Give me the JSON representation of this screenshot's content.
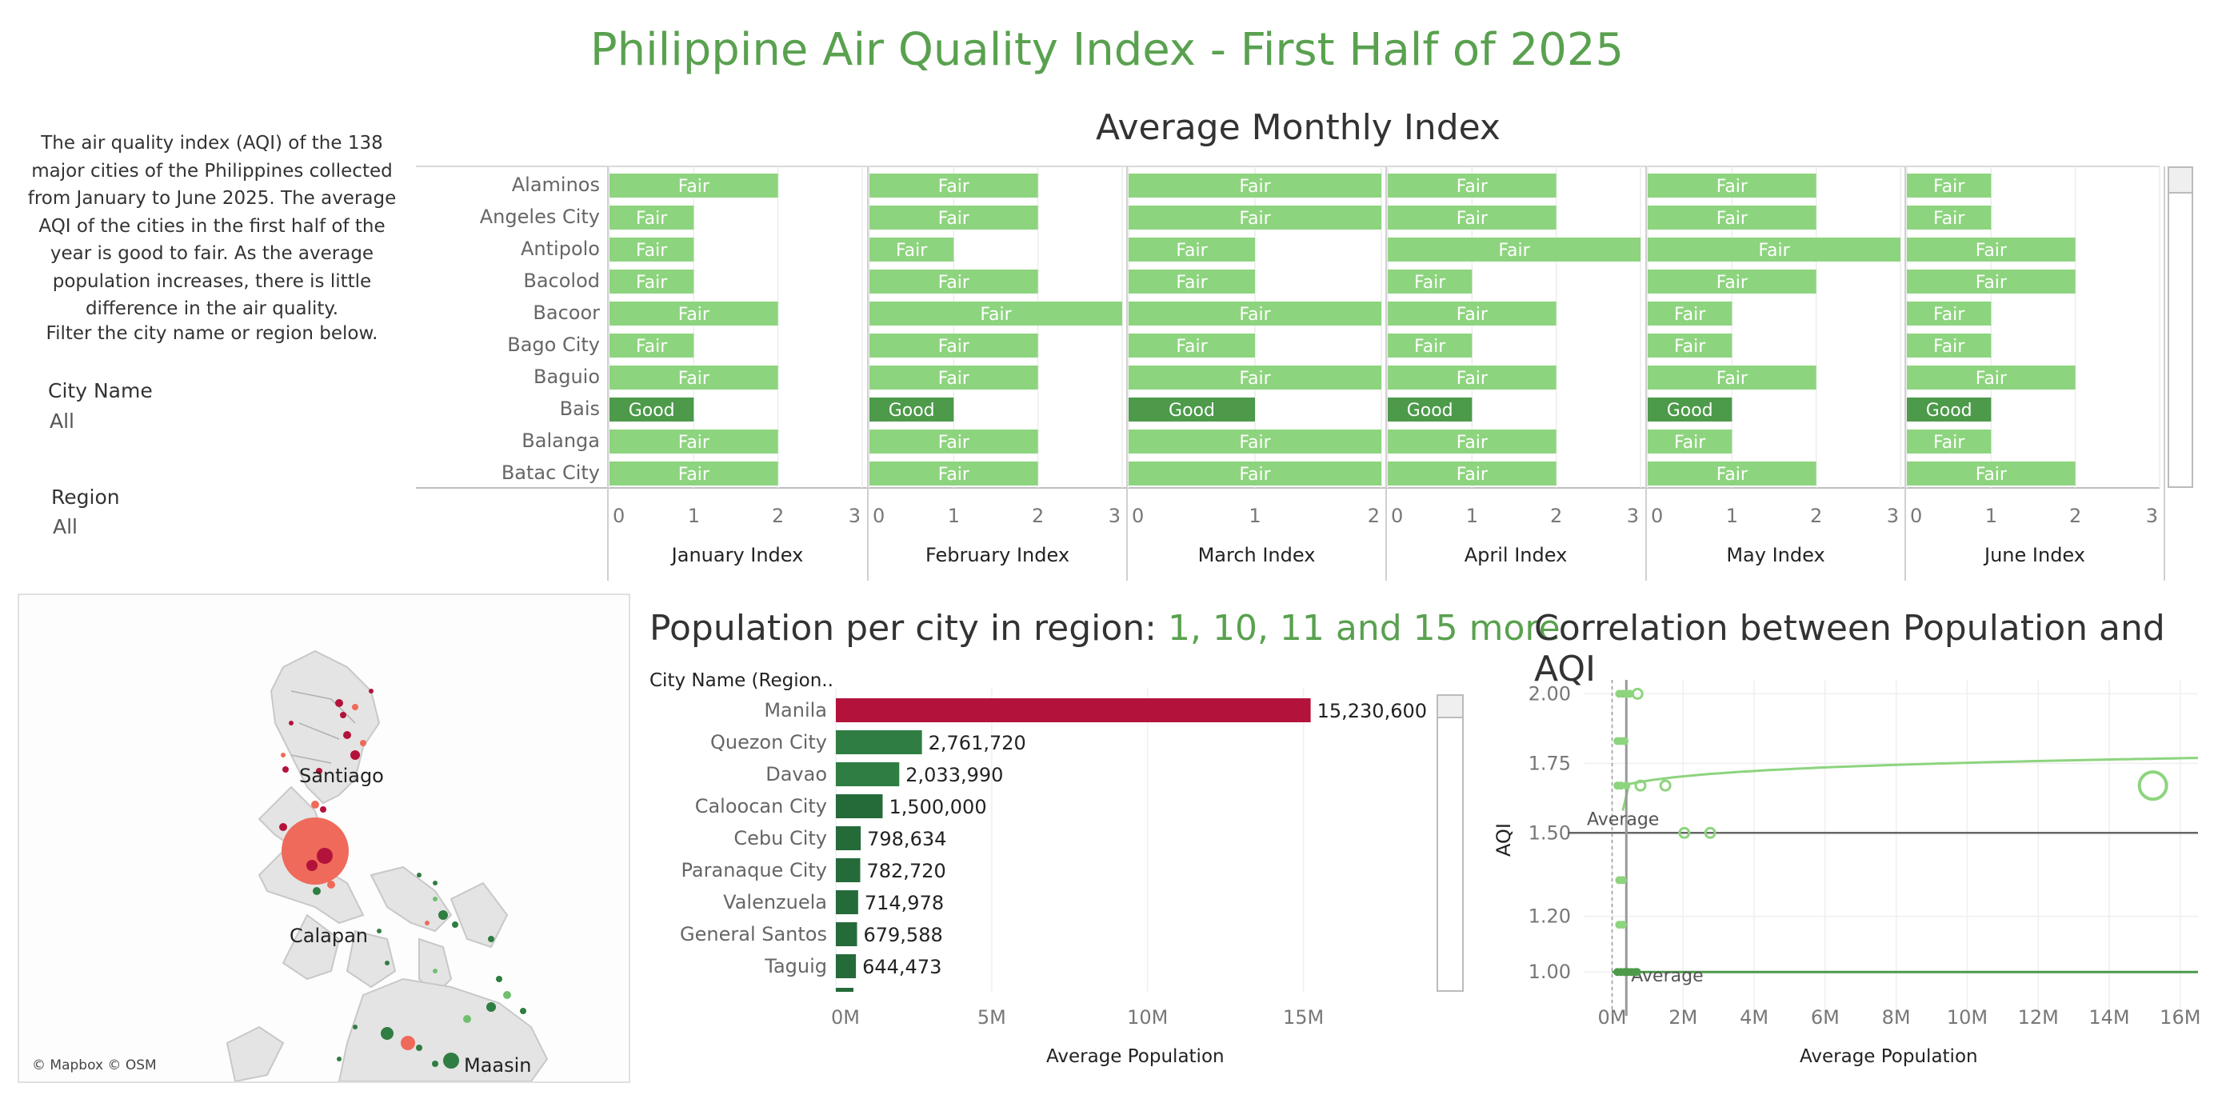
{
  "title": "Philippine Air Quality Index - First Half of 2025",
  "description": "The air quality index (AQI) of the 138 major cities of the Philippines collected from January to June 2025. The average AQI of the cities in the first half of the year is good to fair. As the average population increases, there is little difference in the air quality.",
  "filter_hint": "Filter the city name or region below.",
  "filters": {
    "city": {
      "label": "City Name",
      "value": "All"
    },
    "region": {
      "label": "Region",
      "value": "All"
    }
  },
  "map": {
    "labels": [
      "Santiago",
      "Calapan",
      "Maasin"
    ],
    "attribution": "© Mapbox © OSM",
    "colors": {
      "high": "#b3133b",
      "low": "#2f7d42",
      "mid": "#ef6a5a"
    }
  },
  "colors": {
    "fair": "#8dd47e",
    "good": "#4c9a4a",
    "manila": "#b3133b",
    "population": "#2f7d42",
    "accent": "#59a14f"
  },
  "chart_data": [
    {
      "type": "bar",
      "title": "Average Monthly Index",
      "categories": [
        "Alaminos",
        "Angeles City",
        "Antipolo",
        "Bacolod",
        "Bacoor",
        "Bago City",
        "Baguio",
        "Bais",
        "Balanga",
        "Batac City"
      ],
      "series": [
        {
          "name": "January Index",
          "values": [
            2,
            1,
            1,
            1,
            2,
            1,
            2,
            1,
            2,
            2
          ],
          "labels": [
            "Fair",
            "Fair",
            "Fair",
            "Fair",
            "Fair",
            "Fair",
            "Fair",
            "Good",
            "Fair",
            "Fair"
          ],
          "ticks": [
            "0",
            "1",
            "2",
            "3"
          ],
          "xlim": [
            0,
            3
          ]
        },
        {
          "name": "February Index",
          "values": [
            2,
            2,
            1,
            2,
            3,
            2,
            2,
            1,
            2,
            2
          ],
          "labels": [
            "Fair",
            "Fair",
            "Fair",
            "Fair",
            "Fair",
            "Fair",
            "Fair",
            "Good",
            "Fair",
            "Fair"
          ],
          "ticks": [
            "0",
            "1",
            "2",
            "3"
          ],
          "xlim": [
            0,
            3
          ]
        },
        {
          "name": "March Index",
          "values": [
            2,
            2,
            1,
            1,
            2,
            1,
            2,
            1,
            2,
            2
          ],
          "labels": [
            "Fair",
            "Fair",
            "Fair",
            "Fair",
            "Fair",
            "Fair",
            "Fair",
            "Good",
            "Fair",
            "Fair"
          ],
          "ticks": [
            "0",
            "1",
            "2"
          ],
          "xlim": [
            0,
            2
          ]
        },
        {
          "name": "April Index",
          "values": [
            2,
            2,
            3,
            1,
            2,
            1,
            2,
            1,
            2,
            2
          ],
          "labels": [
            "Fair",
            "Fair",
            "Fair",
            "Fair",
            "Fair",
            "Fair",
            "Fair",
            "Good",
            "Fair",
            "Fair"
          ],
          "ticks": [
            "0",
            "1",
            "2",
            "3"
          ],
          "xlim": [
            0,
            3
          ]
        },
        {
          "name": "May Index",
          "values": [
            2,
            2,
            3,
            2,
            1,
            1,
            2,
            1,
            1,
            2
          ],
          "labels": [
            "Fair",
            "Fair",
            "Fair",
            "Fair",
            "Fair",
            "Fair",
            "Fair",
            "Good",
            "Fair",
            "Fair"
          ],
          "ticks": [
            "0",
            "1",
            "2",
            "3"
          ],
          "xlim": [
            0,
            3
          ]
        },
        {
          "name": "June Index",
          "values": [
            1,
            1,
            2,
            2,
            1,
            1,
            2,
            1,
            1,
            2
          ],
          "labels": [
            "Fair",
            "Fair",
            "Fair",
            "Fair",
            "Fair",
            "Fair",
            "Fair",
            "Good",
            "Fair",
            "Fair"
          ],
          "ticks": [
            "0",
            "1",
            "2",
            "3"
          ],
          "xlim": [
            0,
            3
          ]
        }
      ]
    },
    {
      "type": "bar",
      "title": "Population per city in region: ",
      "title_highlight": "1, 10, 11 and 15 more",
      "ylabel": "City Name (Region..",
      "xlabel": "Average Population",
      "categories": [
        "Manila",
        "Quezon City",
        "Davao",
        "Caloocan City",
        "Cebu City",
        "Paranaque City",
        "Valenzuela",
        "General Santos",
        "Taguig"
      ],
      "values": [
        15230600,
        2761720,
        2033990,
        1500000,
        798634,
        782720,
        714978,
        679588,
        644473
      ],
      "value_labels": [
        "15,230,600",
        "2,761,720",
        "2,033,990",
        "1,500,000",
        "798,634",
        "782,720",
        "714,978",
        "679,588",
        "644,473"
      ],
      "ticks": [
        "0M",
        "5M",
        "10M",
        "15M"
      ],
      "xlim": [
        0,
        19500000
      ]
    },
    {
      "type": "scatter",
      "title": "Correlation between Population and AQI",
      "xlabel": "Average Population",
      "ylabel": "AQI",
      "x_ticks": [
        "0M",
        "2M",
        "4M",
        "6M",
        "8M",
        "10M",
        "12M",
        "14M",
        "16M"
      ],
      "y_ticks": [
        "2.00",
        "1.75",
        "1.50",
        "1.20",
        "1.00"
      ],
      "xlim": [
        -800000,
        16500000
      ],
      "ylim": [
        0.9,
        2.05
      ],
      "average_labels": [
        "Average",
        "Average"
      ],
      "average_aqi": 1.5,
      "average_population": 400000,
      "points": [
        {
          "x": 15230600,
          "y": 1.67,
          "hollow": true
        },
        {
          "x": 2033990,
          "y": 1.5,
          "hollow": true
        },
        {
          "x": 2761720,
          "y": 1.5,
          "hollow": true
        },
        {
          "x": 1500000,
          "y": 1.67,
          "hollow": true
        },
        {
          "x": 798634,
          "y": 1.67,
          "hollow": true
        },
        {
          "x": 714978,
          "y": 2.0,
          "hollow": true
        },
        {
          "x": 200000,
          "y": 2.0
        },
        {
          "x": 300000,
          "y": 2.0
        },
        {
          "x": 400000,
          "y": 2.0
        },
        {
          "x": 500000,
          "y": 2.0
        },
        {
          "x": 150000,
          "y": 1.83
        },
        {
          "x": 250000,
          "y": 1.83
        },
        {
          "x": 350000,
          "y": 1.83
        },
        {
          "x": 150000,
          "y": 1.67
        },
        {
          "x": 250000,
          "y": 1.67
        },
        {
          "x": 400000,
          "y": 1.67
        },
        {
          "x": 200000,
          "y": 1.33
        },
        {
          "x": 300000,
          "y": 1.33
        },
        {
          "x": 200000,
          "y": 1.17
        },
        {
          "x": 300000,
          "y": 1.17
        },
        {
          "x": 150000,
          "y": 1.0
        },
        {
          "x": 250000,
          "y": 1.0
        },
        {
          "x": 350000,
          "y": 1.0
        },
        {
          "x": 450000,
          "y": 1.0
        },
        {
          "x": 550000,
          "y": 1.0
        },
        {
          "x": 650000,
          "y": 1.0
        },
        {
          "x": 700000,
          "y": 1.0
        }
      ]
    }
  ]
}
